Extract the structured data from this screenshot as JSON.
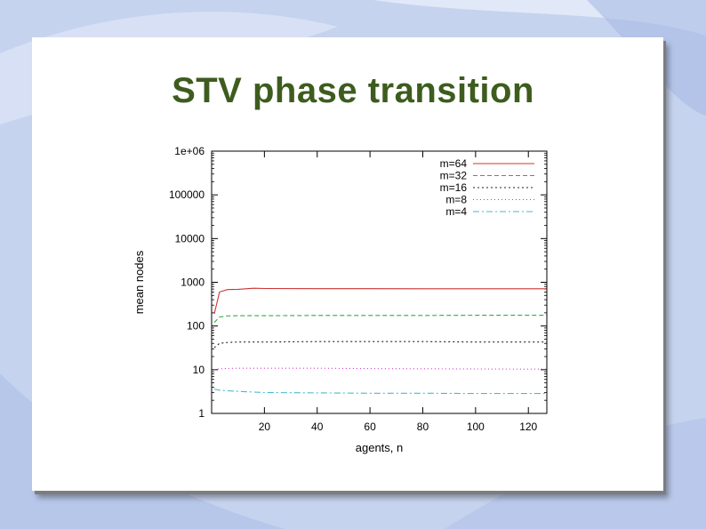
{
  "slide": {
    "title": "STV phase transition"
  },
  "chart_data": {
    "type": "line",
    "title": "",
    "xlabel": "agents, n",
    "ylabel": "mean nodes",
    "xlim": [
      0,
      127
    ],
    "ylim": [
      1,
      1000000
    ],
    "yscale": "log",
    "x_ticks": [
      20,
      40,
      60,
      80,
      100,
      120
    ],
    "y_ticks": [
      1,
      10,
      100,
      1000,
      10000,
      100000,
      1000000
    ],
    "y_tick_labels": [
      "1",
      "10",
      "100",
      "1000",
      "10000",
      "100000",
      "1e+06"
    ],
    "legend_position": "top-right",
    "grid": false,
    "series": [
      {
        "name": "m=64",
        "color": "#cc3333",
        "dash": "",
        "x": [
          1,
          3,
          6,
          10,
          16,
          20,
          40,
          60,
          80,
          100,
          120,
          127
        ],
        "y": [
          190,
          600,
          680,
          690,
          730,
          720,
          715,
          715,
          712,
          712,
          712,
          712
        ]
      },
      {
        "name": "m=32",
        "color": "#33aa44",
        "dash": "5,3",
        "x": [
          1,
          3,
          6,
          10,
          20,
          40,
          60,
          80,
          100,
          120,
          127
        ],
        "y": [
          120,
          160,
          170,
          172,
          172,
          174,
          174,
          174,
          176,
          176,
          177
        ]
      },
      {
        "name": "m=16",
        "color": "#222222",
        "dash": "2,3",
        "x": [
          1,
          3,
          6,
          10,
          20,
          40,
          60,
          80,
          100,
          120,
          127
        ],
        "y": [
          32,
          40,
          42,
          43,
          43,
          44,
          44,
          44,
          43,
          43,
          43
        ]
      },
      {
        "name": "m=8",
        "color": "#cc33cc",
        "dash": "1,3",
        "x": [
          1,
          3,
          6,
          10,
          20,
          40,
          60,
          80,
          100,
          120,
          127
        ],
        "y": [
          10,
          10.5,
          10.7,
          10.8,
          10.8,
          10.8,
          10.6,
          10.5,
          10.4,
          10.3,
          10.3
        ]
      },
      {
        "name": "m=4",
        "color": "#44bbcc",
        "dash": "7,3,2,3",
        "x": [
          1,
          3,
          6,
          10,
          20,
          40,
          60,
          80,
          100,
          120,
          127
        ],
        "y": [
          3.6,
          3.4,
          3.3,
          3.2,
          3.0,
          2.95,
          2.9,
          2.9,
          2.85,
          2.85,
          2.85
        ]
      }
    ]
  }
}
